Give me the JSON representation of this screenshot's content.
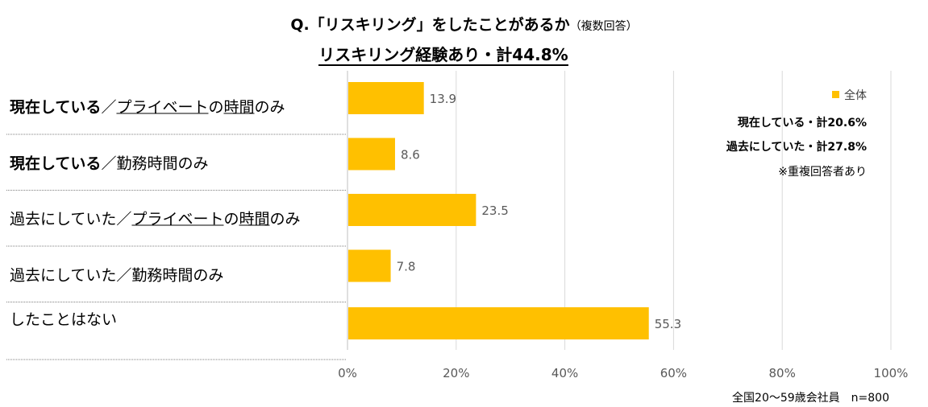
{
  "chart_data": {
    "type": "bar",
    "orientation": "horizontal",
    "title": "Q.「リスキリング」をしたことがあるか",
    "title_note": "（複数回答）",
    "subtitle": "リスキリング経験あり・計44.8%",
    "categories": [
      [
        {
          "text": "現在している",
          "bold": true
        },
        {
          "text": "／"
        },
        {
          "text": "プライベート",
          "underline": true
        },
        {
          "text": "の"
        },
        {
          "text": "時間",
          "underline": true
        },
        {
          "text": "のみ"
        }
      ],
      [
        {
          "text": "現在している",
          "bold": true
        },
        {
          "text": "／勤務時間のみ"
        }
      ],
      [
        {
          "text": "過去にしていた／"
        },
        {
          "text": "プライベート",
          "underline": true
        },
        {
          "text": "の"
        },
        {
          "text": "時間",
          "underline": true
        },
        {
          "text": "のみ"
        }
      ],
      [
        {
          "text": "過去にしていた／勤務時間のみ"
        }
      ],
      [
        {
          "text": "したことはない"
        }
      ]
    ],
    "series": [
      {
        "name": "全体",
        "values": [
          13.9,
          8.6,
          23.5,
          7.8,
          55.3
        ],
        "color": "#FFC000"
      }
    ],
    "data_labels": [
      "13.9",
      "8.6",
      "23.5",
      "7.8",
      "55.3"
    ],
    "xlim": [
      0,
      100
    ],
    "xticks": [
      "0%",
      "20%",
      "40%",
      "60%",
      "80%",
      "100%"
    ],
    "grid": true,
    "legend_position": "top-right",
    "annotations": [
      "現在している・計20.6%",
      "過去にしていた・計27.8%",
      "※重複回答者あり"
    ],
    "footnote": "全国20～59歳会社員　n=800"
  }
}
